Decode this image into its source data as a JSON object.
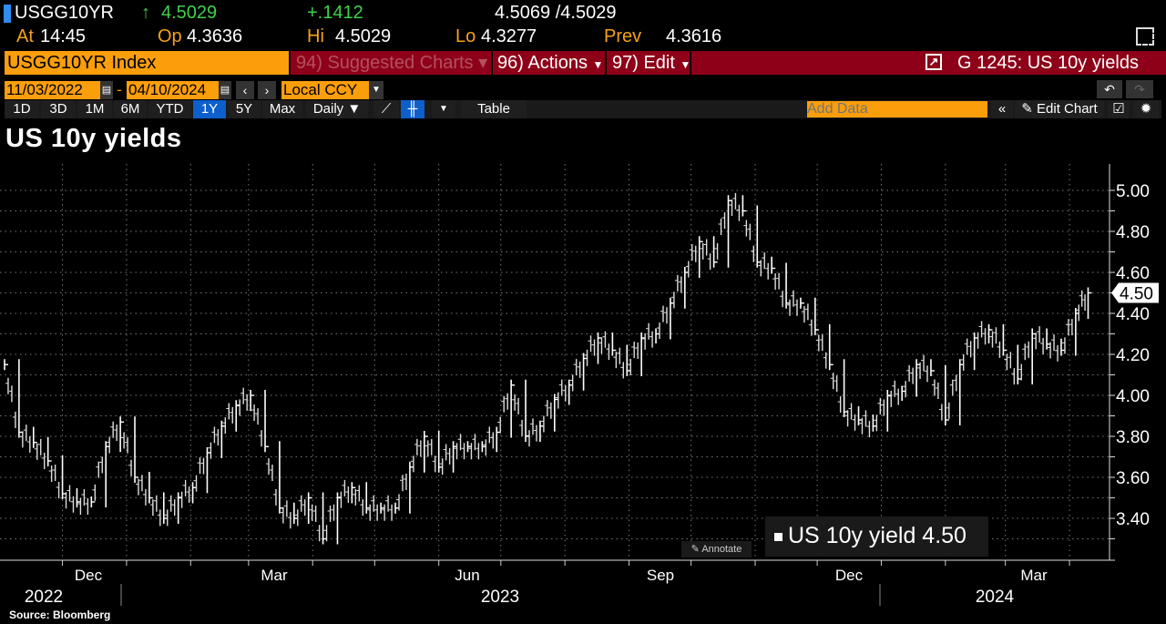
{
  "quote": {
    "ticker": "USGG10YR",
    "last": "4.5029",
    "change": "+.1412",
    "bid_ask": "4.5069 /4.5029",
    "at_label": "At",
    "at": "14:45",
    "open_label": "Op",
    "open": "4.3636",
    "high_label": "Hi",
    "high": "4.5029",
    "low_label": "Lo",
    "low": "4.3277",
    "prev_label": "Prev",
    "prev": "4.3616",
    "up_arrow": "↑"
  },
  "command_bar": {
    "security": "USGG10YR Index",
    "suggested": "94) Suggested Charts",
    "actions": "96) Actions",
    "edit": "97) Edit",
    "chart_title": "G 1245: US 10y yields"
  },
  "range": {
    "start": "11/03/2022",
    "end": "04/10/2024",
    "currency": "Local CCY",
    "sep": "-"
  },
  "toolbar": {
    "periods": [
      "1D",
      "3D",
      "1M",
      "6M",
      "YTD",
      "1Y",
      "5Y",
      "Max"
    ],
    "selected": "1Y",
    "frequency": "Daily ▼",
    "table": "Table",
    "add_data_placeholder": "Add Data",
    "edit_chart": "Edit Chart"
  },
  "annotate": "Annotate",
  "source": "Source: Bloomberg",
  "colors": {
    "orange": "#fa9e0b",
    "red": "#8d0018",
    "selected": "#0d5fcc",
    "up": "#3fd24a"
  },
  "chart_data": {
    "type": "line",
    "title": "US 10y yields",
    "style": "price bars",
    "ylim": [
      3.2,
      5.1
    ],
    "y_ticks": [
      "3.40",
      "3.60",
      "3.80",
      "4.00",
      "4.20",
      "4.40",
      "4.60",
      "4.80",
      "5.00"
    ],
    "x_ticks": [
      "Dec",
      "Mar",
      "Jun",
      "Sep",
      "Dec",
      "Mar"
    ],
    "x_years": [
      "2022",
      "2023",
      "2024"
    ],
    "grid": true,
    "legend": "bottom-right",
    "last_value_tag": "4.50",
    "series": [
      {
        "name": "US 10y yield 4.50",
        "color": "#ffffff",
        "points": [
          [
            "2022-11-03",
            4.15
          ],
          [
            "2022-11-10",
            3.82
          ],
          [
            "2022-11-17",
            3.77
          ],
          [
            "2022-11-24",
            3.68
          ],
          [
            "2022-12-01",
            3.52
          ],
          [
            "2022-12-08",
            3.48
          ],
          [
            "2022-12-15",
            3.48
          ],
          [
            "2022-12-22",
            3.75
          ],
          [
            "2022-12-29",
            3.87
          ],
          [
            "2023-01-05",
            3.6
          ],
          [
            "2023-01-12",
            3.5
          ],
          [
            "2023-01-19",
            3.4
          ],
          [
            "2023-01-26",
            3.5
          ],
          [
            "2023-02-02",
            3.55
          ],
          [
            "2023-02-09",
            3.72
          ],
          [
            "2023-02-16",
            3.85
          ],
          [
            "2023-02-23",
            3.95
          ],
          [
            "2023-03-02",
            4.0
          ],
          [
            "2023-03-09",
            3.75
          ],
          [
            "2023-03-16",
            3.45
          ],
          [
            "2023-03-23",
            3.4
          ],
          [
            "2023-03-30",
            3.5
          ],
          [
            "2023-04-06",
            3.3
          ],
          [
            "2023-04-13",
            3.5
          ],
          [
            "2023-04-20",
            3.55
          ],
          [
            "2023-04-27",
            3.45
          ],
          [
            "2023-05-04",
            3.45
          ],
          [
            "2023-05-11",
            3.45
          ],
          [
            "2023-05-18",
            3.65
          ],
          [
            "2023-05-25",
            3.8
          ],
          [
            "2023-06-01",
            3.65
          ],
          [
            "2023-06-08",
            3.75
          ],
          [
            "2023-06-15",
            3.75
          ],
          [
            "2023-06-22",
            3.75
          ],
          [
            "2023-06-29",
            3.82
          ],
          [
            "2023-07-06",
            4.05
          ],
          [
            "2023-07-13",
            3.8
          ],
          [
            "2023-07-20",
            3.85
          ],
          [
            "2023-07-27",
            3.98
          ],
          [
            "2023-08-03",
            4.05
          ],
          [
            "2023-08-10",
            4.18
          ],
          [
            "2023-08-17",
            4.28
          ],
          [
            "2023-08-24",
            4.22
          ],
          [
            "2023-08-31",
            4.12
          ],
          [
            "2023-09-07",
            4.28
          ],
          [
            "2023-09-14",
            4.3
          ],
          [
            "2023-09-21",
            4.45
          ],
          [
            "2023-09-28",
            4.6
          ],
          [
            "2023-10-05",
            4.75
          ],
          [
            "2023-10-12",
            4.65
          ],
          [
            "2023-10-19",
            4.95
          ],
          [
            "2023-10-26",
            4.9
          ],
          [
            "2023-11-02",
            4.65
          ],
          [
            "2023-11-09",
            4.62
          ],
          [
            "2023-11-16",
            4.45
          ],
          [
            "2023-11-23",
            4.45
          ],
          [
            "2023-11-30",
            4.32
          ],
          [
            "2023-12-07",
            4.15
          ],
          [
            "2023-12-14",
            3.92
          ],
          [
            "2023-12-21",
            3.88
          ],
          [
            "2023-12-28",
            3.85
          ],
          [
            "2024-01-04",
            4.0
          ],
          [
            "2024-01-11",
            4.02
          ],
          [
            "2024-01-18",
            4.15
          ],
          [
            "2024-01-25",
            4.12
          ],
          [
            "2024-02-01",
            3.88
          ],
          [
            "2024-02-08",
            4.15
          ],
          [
            "2024-02-15",
            4.28
          ],
          [
            "2024-02-22",
            4.32
          ],
          [
            "2024-02-29",
            4.22
          ],
          [
            "2024-03-07",
            4.08
          ],
          [
            "2024-03-14",
            4.3
          ],
          [
            "2024-03-21",
            4.25
          ],
          [
            "2024-03-28",
            4.22
          ],
          [
            "2024-04-04",
            4.4
          ],
          [
            "2024-04-10",
            4.5
          ]
        ]
      }
    ]
  }
}
